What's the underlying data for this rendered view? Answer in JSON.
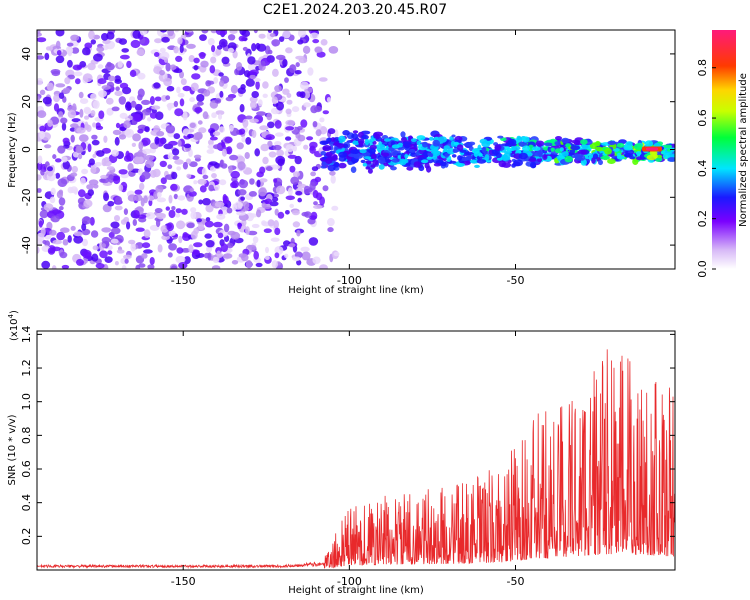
{
  "title": "C2E1.2024.203.20.45.R07",
  "chart_data": [
    {
      "type": "heatmap",
      "description_of_axes": "spectrogram",
      "xlabel": "Height of straight line (km)",
      "ylabel": "Frequency (Hz)",
      "xlim": [
        -194,
        -2
      ],
      "ylim": [
        -50,
        50
      ],
      "x_ticks": [
        -150,
        -100,
        -50
      ],
      "y_ticks": [
        -40,
        -20,
        0,
        20,
        40
      ],
      "colorbar": {
        "label": "Normalized spectral amplitude",
        "range": [
          0.0,
          0.95
        ],
        "ticks": [
          "0.0",
          "0.2",
          "0.4",
          "0.6",
          "0.8"
        ]
      },
      "noise_region_x": [
        -194,
        -108
      ],
      "signal_band_center_hz": 0,
      "signal_band_halfwidth_hz": 8
    },
    {
      "type": "line",
      "xlabel": "Height of straight line (km)",
      "ylabel": "SNR (10 * v/v)",
      "scale_label": "(x10",
      "scale_exp": "4",
      "scale_close": ")",
      "xlim": [
        -194,
        -2
      ],
      "ylim": [
        0,
        1.42
      ],
      "x_ticks": [
        -150,
        -100,
        -50
      ],
      "y_ticks": [
        "0.2",
        "0.4",
        "0.6",
        "0.8",
        "1.0",
        "1.2",
        "1.4"
      ],
      "y_tick_values": [
        0.2,
        0.4,
        0.6,
        0.8,
        1.0,
        1.2,
        1.4
      ],
      "color": "#e8292b",
      "envelope": [
        {
          "x": -194,
          "y": 0.03
        },
        {
          "x": -120,
          "y": 0.03
        },
        {
          "x": -108,
          "y": 0.05
        },
        {
          "x": -100,
          "y": 0.35
        },
        {
          "x": -90,
          "y": 0.4
        },
        {
          "x": -70,
          "y": 0.45
        },
        {
          "x": -55,
          "y": 0.55
        },
        {
          "x": -45,
          "y": 0.8
        },
        {
          "x": -30,
          "y": 1.05
        },
        {
          "x": -20,
          "y": 1.2
        },
        {
          "x": -10,
          "y": 1.1
        },
        {
          "x": -2,
          "y": 1.0
        }
      ]
    }
  ]
}
